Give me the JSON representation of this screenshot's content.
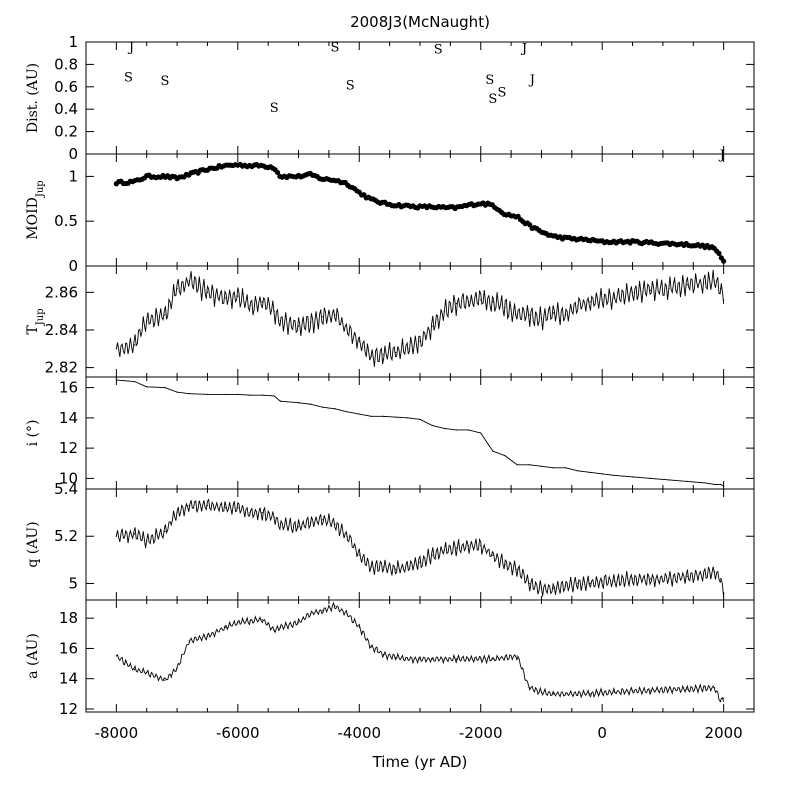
{
  "chart_data": {
    "type": "line",
    "title": "2008J3(McNaught)",
    "xlabel": "Time (yr AD)",
    "xlim": [
      -8500,
      2500
    ],
    "xticks": [
      -8000,
      -6000,
      -4000,
      -2000,
      0,
      2000
    ],
    "xtick_labels": [
      "-8000",
      "-6000",
      "-4000",
      "-2000",
      "0",
      "2000"
    ],
    "panels": [
      {
        "key": "dist",
        "ylabel": "Dist. (AU)",
        "style": "letters",
        "ylim": [
          0,
          1
        ],
        "yticks": [
          0,
          0.2,
          0.4,
          0.6,
          0.8,
          1
        ],
        "ytick_labels": [
          "0",
          "0.2",
          "0.4",
          "0.6",
          "0.8",
          "1"
        ],
        "encounters": [
          {
            "x": -7750,
            "y": 0.96,
            "label": "J"
          },
          {
            "x": -7800,
            "y": 0.69,
            "label": "S"
          },
          {
            "x": -7200,
            "y": 0.66,
            "label": "S"
          },
          {
            "x": -5400,
            "y": 0.42,
            "label": "S"
          },
          {
            "x": -4400,
            "y": 0.96,
            "label": "S"
          },
          {
            "x": -4150,
            "y": 0.62,
            "label": "S"
          },
          {
            "x": -2700,
            "y": 0.94,
            "label": "S"
          },
          {
            "x": -1850,
            "y": 0.67,
            "label": "S"
          },
          {
            "x": -1800,
            "y": 0.5,
            "label": "S"
          },
          {
            "x": -1650,
            "y": 0.56,
            "label": "S"
          },
          {
            "x": -1280,
            "y": 0.95,
            "label": "J"
          },
          {
            "x": -1150,
            "y": 0.67,
            "label": "J"
          },
          {
            "x": 1980,
            "y": 0.0,
            "label": "J"
          }
        ]
      },
      {
        "key": "moid",
        "ylabel": "MOID",
        "ylabel_sub": "Jup",
        "style": "dots",
        "ylim": [
          0,
          1.25
        ],
        "yticks": [
          0,
          0.5,
          1
        ],
        "ytick_labels": [
          "0",
          "0.5",
          "1"
        ],
        "x": [
          -8000,
          -7700,
          -7500,
          -7200,
          -7000,
          -6800,
          -6500,
          -6200,
          -6000,
          -5800,
          -5600,
          -5400,
          -5300,
          -5000,
          -4800,
          -4600,
          -4400,
          -4200,
          -4000,
          -3800,
          -3600,
          -3400,
          -3200,
          -3000,
          -2800,
          -2600,
          -2400,
          -2200,
          -2000,
          -1800,
          -1600,
          -1400,
          -1200,
          -1000,
          -800,
          -600,
          -400,
          -200,
          0,
          200,
          500,
          800,
          1100,
          1400,
          1700,
          1850,
          1950,
          2000
        ],
        "y": [
          0.93,
          0.94,
          1.0,
          1.0,
          0.98,
          1.02,
          1.08,
          1.12,
          1.13,
          1.12,
          1.12,
          1.1,
          1.0,
          1.0,
          1.02,
          0.97,
          0.96,
          0.92,
          0.82,
          0.74,
          0.7,
          0.68,
          0.67,
          0.66,
          0.66,
          0.65,
          0.65,
          0.68,
          0.7,
          0.68,
          0.58,
          0.55,
          0.45,
          0.38,
          0.33,
          0.31,
          0.3,
          0.29,
          0.27,
          0.27,
          0.27,
          0.26,
          0.25,
          0.24,
          0.22,
          0.2,
          0.1,
          0.05
        ]
      },
      {
        "key": "tjup",
        "ylabel": "T",
        "ylabel_sub": "Jup",
        "style": "line",
        "ylim": [
          2.815,
          2.874
        ],
        "yticks": [
          2.82,
          2.84,
          2.86
        ],
        "ytick_labels": [
          "2.82",
          "2.84",
          "2.86"
        ],
        "x": [
          -8000,
          -7700,
          -7500,
          -7200,
          -7000,
          -6800,
          -6500,
          -6200,
          -6000,
          -5800,
          -5600,
          -5400,
          -5300,
          -5000,
          -4800,
          -4600,
          -4400,
          -4200,
          -4000,
          -3800,
          -3600,
          -3400,
          -3200,
          -3000,
          -2800,
          -2600,
          -2400,
          -2200,
          -2000,
          -1800,
          -1600,
          -1400,
          -1200,
          -1000,
          -800,
          -600,
          -400,
          -200,
          0,
          200,
          500,
          800,
          1100,
          1400,
          1700,
          1850,
          1950,
          2000
        ],
        "y": [
          2.83,
          2.832,
          2.845,
          2.848,
          2.862,
          2.866,
          2.86,
          2.857,
          2.858,
          2.853,
          2.855,
          2.85,
          2.845,
          2.842,
          2.844,
          2.847,
          2.848,
          2.84,
          2.834,
          2.826,
          2.827,
          2.828,
          2.83,
          2.834,
          2.842,
          2.85,
          2.854,
          2.855,
          2.856,
          2.855,
          2.852,
          2.848,
          2.848,
          2.846,
          2.849,
          2.848,
          2.853,
          2.855,
          2.856,
          2.857,
          2.86,
          2.861,
          2.862,
          2.864,
          2.865,
          2.866,
          2.862,
          2.856
        ]
      },
      {
        "key": "incl",
        "ylabel": "i (°)",
        "style": "line",
        "ylim": [
          9.3,
          16.7
        ],
        "yticks": [
          10,
          12,
          14,
          16
        ],
        "ytick_labels": [
          "10",
          "12",
          "14",
          "16"
        ],
        "x": [
          -8000,
          -7700,
          -7500,
          -7200,
          -7000,
          -6800,
          -6500,
          -6200,
          -6000,
          -5800,
          -5600,
          -5400,
          -5300,
          -5000,
          -4800,
          -4600,
          -4400,
          -4200,
          -4000,
          -3800,
          -3600,
          -3400,
          -3200,
          -3000,
          -2800,
          -2600,
          -2400,
          -2200,
          -2000,
          -1800,
          -1600,
          -1400,
          -1200,
          -1000,
          -800,
          -600,
          -400,
          -200,
          0,
          200,
          500,
          800,
          1100,
          1400,
          1700,
          1850,
          1950,
          2000
        ],
        "y": [
          16.5,
          16.4,
          16.05,
          16.0,
          15.7,
          15.6,
          15.55,
          15.55,
          15.55,
          15.5,
          15.5,
          15.45,
          15.1,
          15.0,
          14.9,
          14.7,
          14.6,
          14.4,
          14.25,
          14.1,
          14.1,
          14.05,
          14.0,
          13.9,
          13.5,
          13.3,
          13.2,
          13.2,
          13.0,
          11.8,
          11.5,
          10.9,
          10.9,
          10.8,
          10.7,
          10.7,
          10.5,
          10.4,
          10.3,
          10.2,
          10.1,
          10.0,
          9.9,
          9.8,
          9.7,
          9.6,
          9.6,
          9.5
        ]
      },
      {
        "key": "q",
        "ylabel": "q (AU)",
        "style": "line",
        "ylim": [
          4.93,
          5.4
        ],
        "yticks": [
          5,
          5.2,
          5.4
        ],
        "ytick_labels": [
          "5",
          "5.2",
          "5.4"
        ],
        "x": [
          -8000,
          -7700,
          -7500,
          -7200,
          -7000,
          -6800,
          -6500,
          -6200,
          -6000,
          -5800,
          -5600,
          -5400,
          -5300,
          -5000,
          -4800,
          -4600,
          -4400,
          -4200,
          -4000,
          -3800,
          -3600,
          -3400,
          -3200,
          -3000,
          -2800,
          -2600,
          -2400,
          -2200,
          -2000,
          -1800,
          -1600,
          -1400,
          -1200,
          -1000,
          -800,
          -600,
          -400,
          -200,
          0,
          200,
          500,
          800,
          1100,
          1400,
          1700,
          1850,
          1950,
          2000
        ],
        "y": [
          5.2,
          5.21,
          5.18,
          5.22,
          5.3,
          5.33,
          5.33,
          5.32,
          5.32,
          5.3,
          5.3,
          5.28,
          5.25,
          5.24,
          5.26,
          5.27,
          5.25,
          5.2,
          5.12,
          5.07,
          5.07,
          5.06,
          5.07,
          5.09,
          5.12,
          5.14,
          5.15,
          5.16,
          5.16,
          5.12,
          5.08,
          5.06,
          5.0,
          4.98,
          4.98,
          4.99,
          5.0,
          5.0,
          5.01,
          5.01,
          5.02,
          5.02,
          5.02,
          5.03,
          5.04,
          5.05,
          5.02,
          4.96
        ]
      },
      {
        "key": "a",
        "ylabel": "a (AU)",
        "style": "line",
        "ylim": [
          11.8,
          19.2
        ],
        "yticks": [
          12,
          14,
          16,
          18
        ],
        "ytick_labels": [
          "12",
          "14",
          "16",
          "18"
        ],
        "x": [
          -8000,
          -7700,
          -7500,
          -7200,
          -7000,
          -6800,
          -6500,
          -6200,
          -6000,
          -5800,
          -5600,
          -5400,
          -5300,
          -5000,
          -4800,
          -4600,
          -4400,
          -4200,
          -4000,
          -3800,
          -3600,
          -3400,
          -3200,
          -3000,
          -2800,
          -2600,
          -2400,
          -2200,
          -2000,
          -1800,
          -1600,
          -1400,
          -1200,
          -1000,
          -800,
          -600,
          -400,
          -200,
          0,
          200,
          500,
          800,
          1100,
          1400,
          1700,
          1850,
          1950,
          2000
        ],
        "y": [
          15.5,
          14.6,
          14.4,
          13.9,
          14.7,
          16.5,
          16.8,
          17.4,
          17.7,
          17.8,
          17.9,
          17.2,
          17.4,
          17.7,
          18.3,
          18.5,
          18.8,
          18.3,
          17.4,
          16.1,
          15.6,
          15.4,
          15.3,
          15.3,
          15.3,
          15.3,
          15.3,
          15.3,
          15.3,
          15.3,
          15.4,
          15.5,
          13.4,
          13.1,
          13.0,
          13.0,
          13.0,
          13.0,
          13.1,
          13.1,
          13.2,
          13.2,
          13.3,
          13.3,
          13.4,
          13.4,
          12.5,
          12.7
        ]
      }
    ]
  }
}
